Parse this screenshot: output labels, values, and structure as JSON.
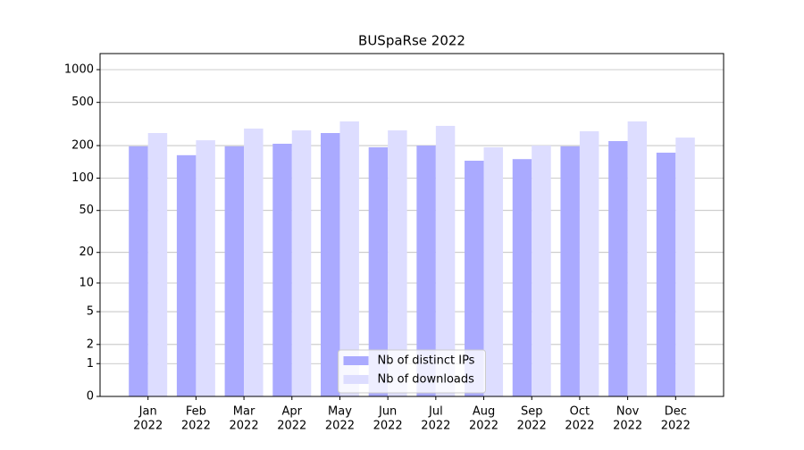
{
  "chart_data": {
    "type": "bar",
    "title": "BUSpaRse 2022",
    "categories": [
      [
        "Jan",
        "2022"
      ],
      [
        "Feb",
        "2022"
      ],
      [
        "Mar",
        "2022"
      ],
      [
        "Apr",
        "2022"
      ],
      [
        "May",
        "2022"
      ],
      [
        "Jun",
        "2022"
      ],
      [
        "Jul",
        "2022"
      ],
      [
        "Aug",
        "2022"
      ],
      [
        "Sep",
        "2022"
      ],
      [
        "Oct",
        "2022"
      ],
      [
        "Nov",
        "2022"
      ],
      [
        "Dec",
        "2022"
      ]
    ],
    "series": [
      {
        "name": "Nb of distinct IPs",
        "color": "#aaaaff",
        "values": [
          197,
          163,
          197,
          208,
          261,
          193,
          200,
          145,
          150,
          197,
          220,
          172
        ]
      },
      {
        "name": "Nb of downloads",
        "color": "#ddddff",
        "values": [
          261,
          224,
          287,
          276,
          334,
          276,
          304,
          193,
          200,
          271,
          334,
          237
        ]
      }
    ],
    "yscale": "log1p",
    "ylim": [
      0,
      1405
    ],
    "yticks": [
      0,
      1,
      2,
      5,
      10,
      20,
      50,
      100,
      200,
      500,
      1000
    ],
    "grid": true,
    "legend": "lower center"
  }
}
